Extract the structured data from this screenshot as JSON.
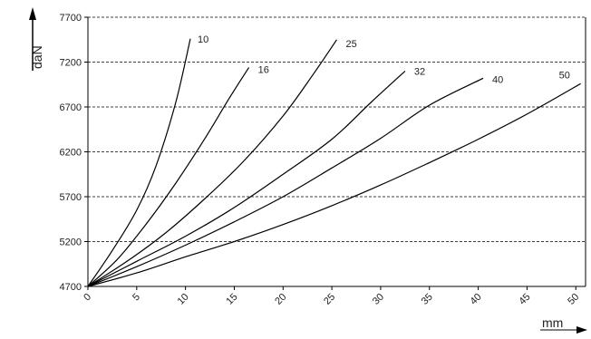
{
  "chart_data": {
    "type": "line",
    "title": "",
    "xlabel": "mm",
    "ylabel": "daN",
    "xlim": [
      0,
      51
    ],
    "ylim": [
      4700,
      7700
    ],
    "x_ticks": [
      "0",
      "5",
      "10",
      "15",
      "20",
      "25",
      "30",
      "35",
      "40",
      "45",
      "50"
    ],
    "y_ticks": [
      "4700",
      "5200",
      "5700",
      "6200",
      "6700",
      "7200",
      "7700"
    ],
    "grid": "horizontal dashed",
    "series": [
      {
        "name": "10",
        "points": [
          [
            0,
            4700
          ],
          [
            2.5,
            5100
          ],
          [
            5,
            5550
          ],
          [
            7,
            6050
          ],
          [
            9,
            6750
          ],
          [
            10.5,
            7460
          ]
        ]
      },
      {
        "name": "16",
        "points": [
          [
            0,
            4700
          ],
          [
            3,
            5000
          ],
          [
            6,
            5400
          ],
          [
            9,
            5850
          ],
          [
            12,
            6350
          ],
          [
            14.5,
            6800
          ],
          [
            16.5,
            7140
          ]
        ]
      },
      {
        "name": "25",
        "points": [
          [
            0,
            4700
          ],
          [
            4,
            4980
          ],
          [
            8,
            5300
          ],
          [
            12,
            5680
          ],
          [
            16,
            6100
          ],
          [
            20,
            6600
          ],
          [
            23,
            7050
          ],
          [
            25.5,
            7450
          ]
        ]
      },
      {
        "name": "32",
        "points": [
          [
            0,
            4700
          ],
          [
            5,
            4980
          ],
          [
            10,
            5260
          ],
          [
            15,
            5580
          ],
          [
            20,
            5950
          ],
          [
            25,
            6340
          ],
          [
            29,
            6750
          ],
          [
            32.5,
            7100
          ]
        ]
      },
      {
        "name": "40",
        "points": [
          [
            0,
            4700
          ],
          [
            5,
            4920
          ],
          [
            10,
            5160
          ],
          [
            15,
            5420
          ],
          [
            20,
            5700
          ],
          [
            25,
            6020
          ],
          [
            30,
            6350
          ],
          [
            35,
            6720
          ],
          [
            40.5,
            7020
          ]
        ]
      },
      {
        "name": "50",
        "points": [
          [
            0,
            4700
          ],
          [
            5,
            4850
          ],
          [
            10,
            5030
          ],
          [
            15,
            5200
          ],
          [
            20,
            5390
          ],
          [
            25,
            5600
          ],
          [
            30,
            5830
          ],
          [
            35,
            6080
          ],
          [
            40,
            6340
          ],
          [
            45,
            6620
          ],
          [
            50.5,
            6960
          ]
        ]
      }
    ]
  }
}
